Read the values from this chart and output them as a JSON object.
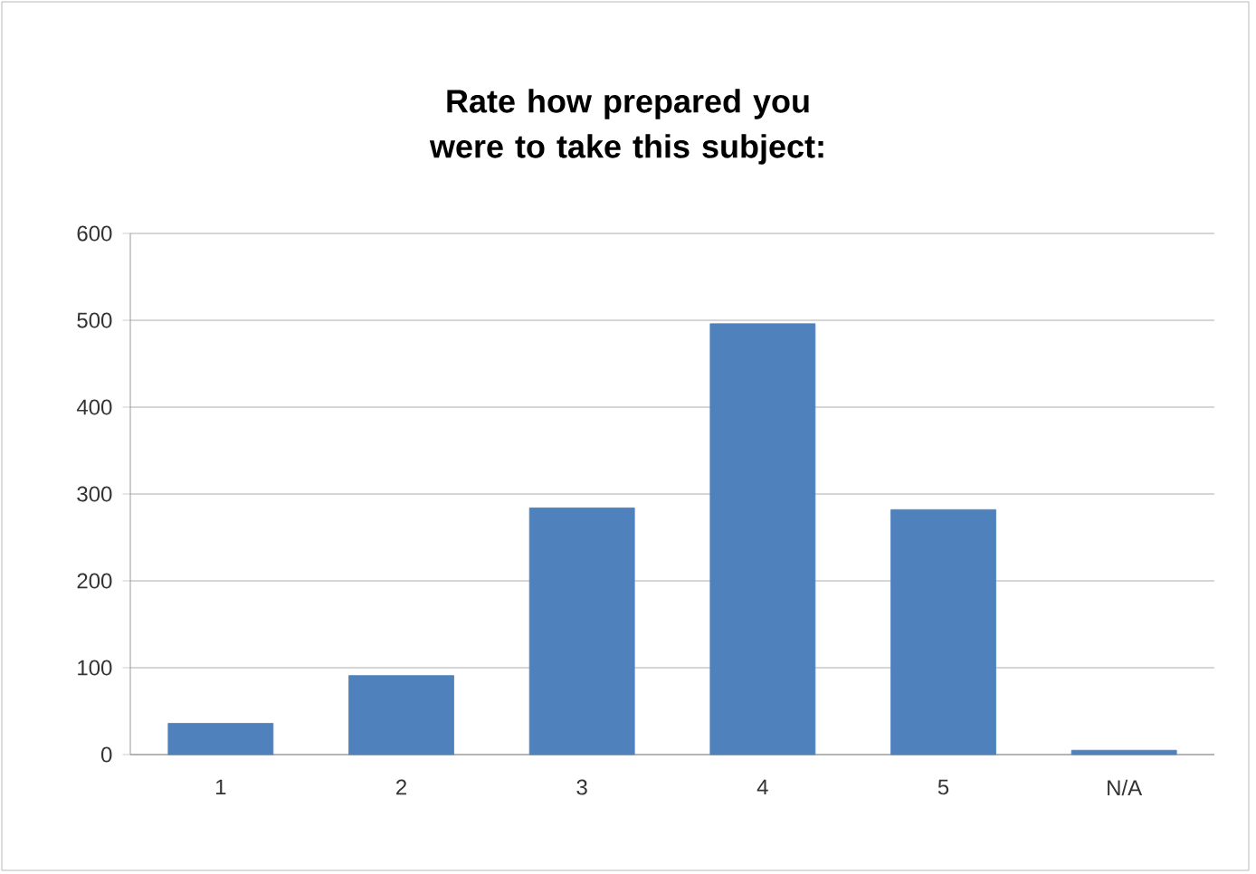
{
  "chart_data": {
    "type": "bar",
    "title": "Rate how prepared you were to take this subject:",
    "categories": [
      "1",
      "2",
      "3",
      "4",
      "5",
      "N/A"
    ],
    "values": [
      36,
      91,
      284,
      496,
      282,
      5
    ],
    "color": "#4f81bd",
    "ylim": [
      0,
      600
    ],
    "yticks": [
      0,
      100,
      200,
      300,
      400,
      500,
      600
    ],
    "grid": "y"
  }
}
